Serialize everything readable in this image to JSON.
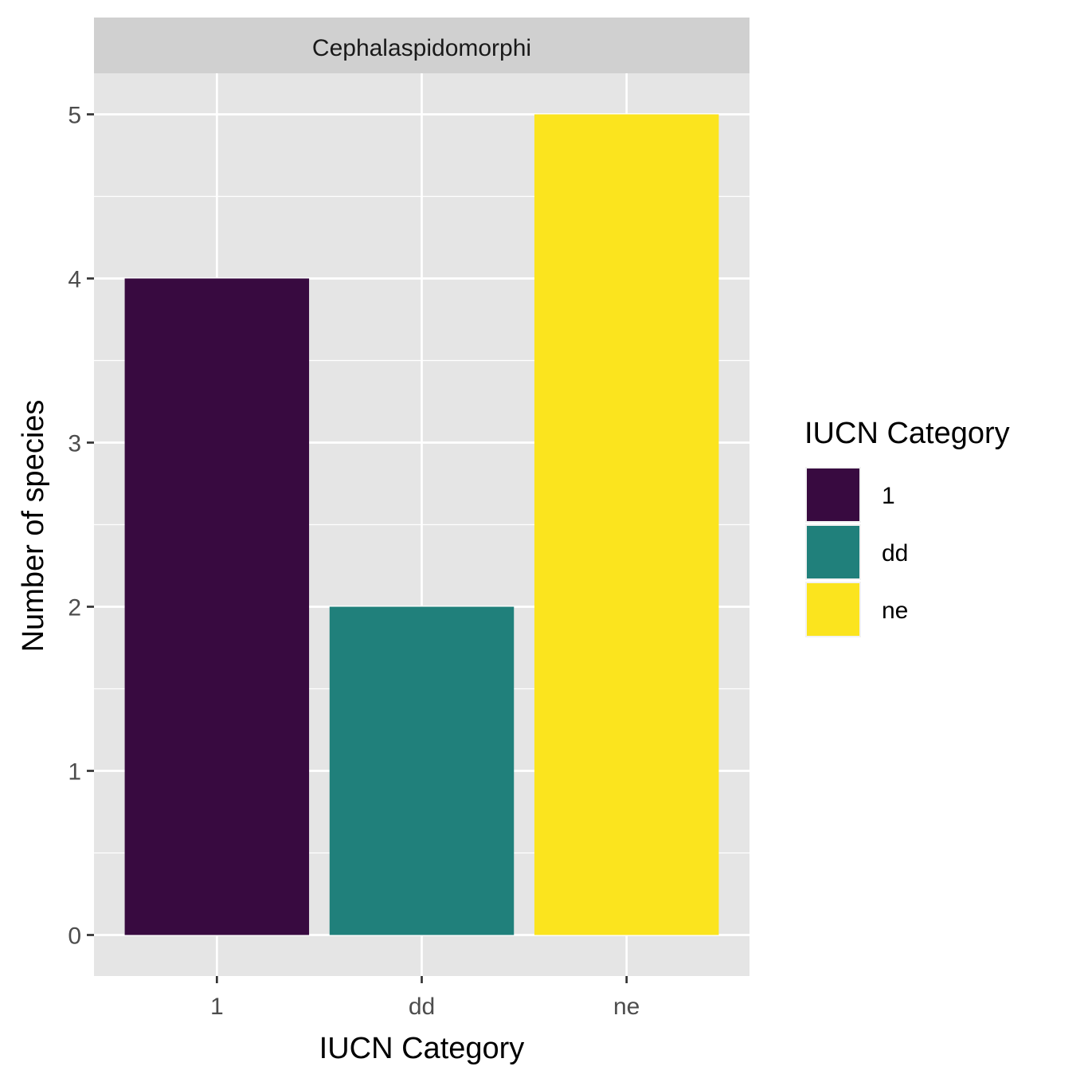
{
  "chart_data": {
    "type": "bar",
    "facet": "Cephalaspidomorphi",
    "categories": [
      "1",
      "dd",
      "ne"
    ],
    "values": [
      4,
      2,
      5
    ],
    "colors": [
      "#380A40",
      "#20807B",
      "#FBE41E"
    ],
    "xlabel": "IUCN Category",
    "ylabel": "Number of species",
    "ylim": [
      -0.25,
      5.25
    ],
    "yticks": [
      "0",
      "1",
      "2",
      "3",
      "4",
      "5"
    ],
    "grid": true,
    "legend": {
      "title": "IUCN Category",
      "placement": "right",
      "entries": [
        "1",
        "dd",
        "ne"
      ]
    }
  },
  "colors": {
    "panel_background": "#E5E5E5",
    "strip_background": "#D0D0D0",
    "grid": "#FFFFFF"
  }
}
